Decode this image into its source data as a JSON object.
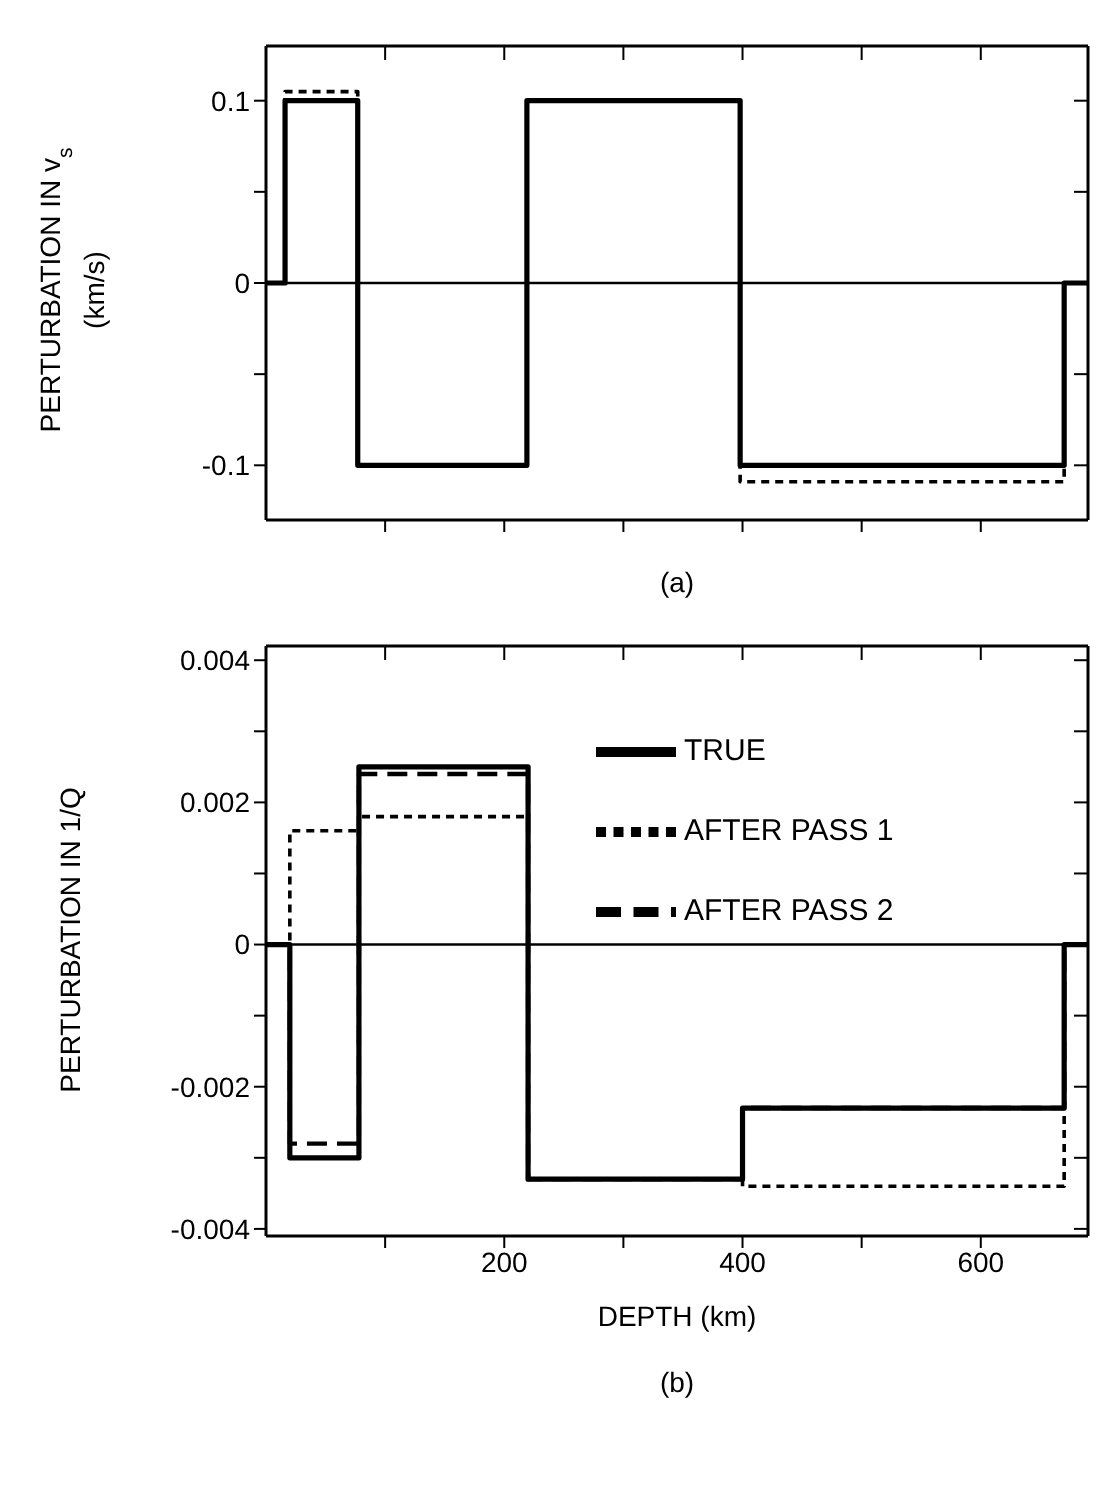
{
  "chart_data": [
    {
      "type": "step",
      "ylabel": "PERTURBATION IN v$_{s}$ (km/s)",
      "xlim": [
        0,
        690
      ],
      "ylim": [
        -0.13,
        0.13
      ],
      "xticks": [
        {
          "value": 100,
          "label": null
        },
        {
          "value": 200,
          "label": null
        },
        {
          "value": 300,
          "label": null
        },
        {
          "value": 400,
          "label": null
        },
        {
          "value": 500,
          "label": null
        },
        {
          "value": 600,
          "label": null
        }
      ],
      "yticks": [
        -0.1,
        {
          "value": -0.05,
          "label": null
        },
        0,
        {
          "value": 0.05,
          "label": null
        },
        0.1
      ],
      "tick_labels": "y",
      "grid": false,
      "legend": false,
      "marker": "none",
      "ref_lines": [
        {
          "axis": "y",
          "value": 0,
          "color": "#000000"
        }
      ],
      "annotations": [
        "(a)"
      ],
      "series": [
        {
          "color": "#000000",
          "line_style": "solid",
          "x": [
            0,
            16,
            77,
            219,
            398,
            670,
            690
          ],
          "values": [
            0,
            0.1,
            -0.1,
            0.1,
            -0.1,
            0,
            0
          ]
        },
        {
          "color": "#000000",
          "line_style": "dotted",
          "x": [
            0,
            16,
            77,
            219,
            398,
            670,
            690
          ],
          "values": [
            0,
            0.105,
            -0.1,
            0.1,
            -0.109,
            0,
            0
          ]
        }
      ]
    },
    {
      "type": "step",
      "xlabel": "DEPTH (km)",
      "ylabel": "PERTURBATION IN 1/Q",
      "xlim": [
        0,
        690
      ],
      "ylim": [
        -0.0041,
        0.0042
      ],
      "xticks": [
        {
          "value": 100,
          "label": null
        },
        200,
        {
          "value": 300,
          "label": null
        },
        400,
        {
          "value": 500,
          "label": null
        },
        600
      ],
      "yticks": [
        -0.004,
        {
          "value": -0.003,
          "label": null
        },
        -0.002,
        {
          "value": -0.001,
          "label": null
        },
        0,
        {
          "value": 0.001,
          "label": null
        },
        0.002,
        {
          "value": 0.003,
          "label": null
        },
        0.004
      ],
      "grid": false,
      "legend": "top right",
      "marker": "none",
      "ref_lines": [
        {
          "axis": "y",
          "value": 0,
          "color": "#000000"
        }
      ],
      "annotations": [
        "(b)"
      ],
      "series": [
        {
          "name": "TRUE",
          "color": "#000000",
          "line_style": "solid",
          "x": [
            0,
            20,
            78,
            220,
            400,
            670,
            690
          ],
          "values": [
            0,
            -0.003,
            0.0025,
            -0.0033,
            -0.0023,
            0,
            0
          ]
        },
        {
          "name": "AFTER PASS 1",
          "color": "#000000",
          "line_style": "dotted",
          "x": [
            0,
            20,
            78,
            220,
            400,
            670,
            690
          ],
          "values": [
            0,
            0.0016,
            0.0018,
            -0.0033,
            -0.0034,
            0,
            0
          ]
        },
        {
          "name": "AFTER PASS 2",
          "color": "#000000",
          "line_style": "dashed",
          "x": [
            0,
            20,
            78,
            220,
            400,
            670,
            690
          ],
          "values": [
            0,
            -0.0028,
            0.0024,
            -0.0033,
            -0.0023,
            0,
            0
          ]
        }
      ]
    }
  ]
}
